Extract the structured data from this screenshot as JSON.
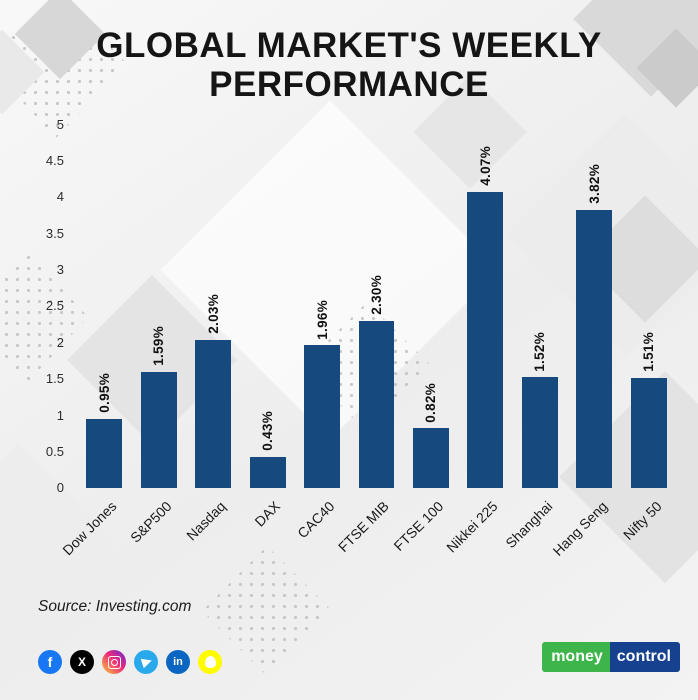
{
  "title": "GLOBAL MARKET'S WEEKLY PERFORMANCE",
  "source": "Source: Investing.com",
  "chart_data": {
    "type": "bar",
    "title": "GLOBAL MARKET'S WEEKLY PERFORMANCE",
    "categories": [
      "Dow Jones",
      "S&P500",
      "Nasdaq",
      "DAX",
      "CAC40",
      "FTSE MIB",
      "FTSE 100",
      "Nikkei 225",
      "Shanghai",
      "Hang Seng",
      "Nifty 50"
    ],
    "values": [
      0.95,
      1.59,
      2.03,
      0.43,
      1.96,
      2.3,
      0.82,
      4.07,
      1.52,
      3.82,
      1.51
    ],
    "labels": [
      "0.95%",
      "1.59%",
      "2.03%",
      "0.43%",
      "1.96%",
      "2.30%",
      "0.82%",
      "4.07%",
      "1.52%",
      "3.82%",
      "1.51%"
    ],
    "xlabel": "",
    "ylabel": "",
    "ylim": [
      0,
      5
    ],
    "yticks": [
      5,
      4.5,
      4,
      3.5,
      3,
      2.5,
      2,
      1.5,
      1,
      0.5,
      0
    ],
    "grid": false,
    "legend": "none",
    "bar_color": "#164a7e"
  },
  "footer": {
    "social_icons": [
      {
        "name": "facebook-icon",
        "glyph": "f",
        "color": "#1877f2"
      },
      {
        "name": "x-twitter-icon",
        "glyph": "X",
        "color": "#000000"
      },
      {
        "name": "instagram-icon",
        "glyph": "",
        "color": "#ee2a7b"
      },
      {
        "name": "telegram-icon",
        "glyph": "",
        "color": "#29a9eb"
      },
      {
        "name": "linkedin-icon",
        "glyph": "in",
        "color": "#0a66c2"
      },
      {
        "name": "snapchat-icon",
        "glyph": "",
        "color": "#fffc00"
      }
    ],
    "logo": {
      "money": "money",
      "control": "control",
      "green": "#3db54a",
      "blue": "#15418f"
    }
  }
}
